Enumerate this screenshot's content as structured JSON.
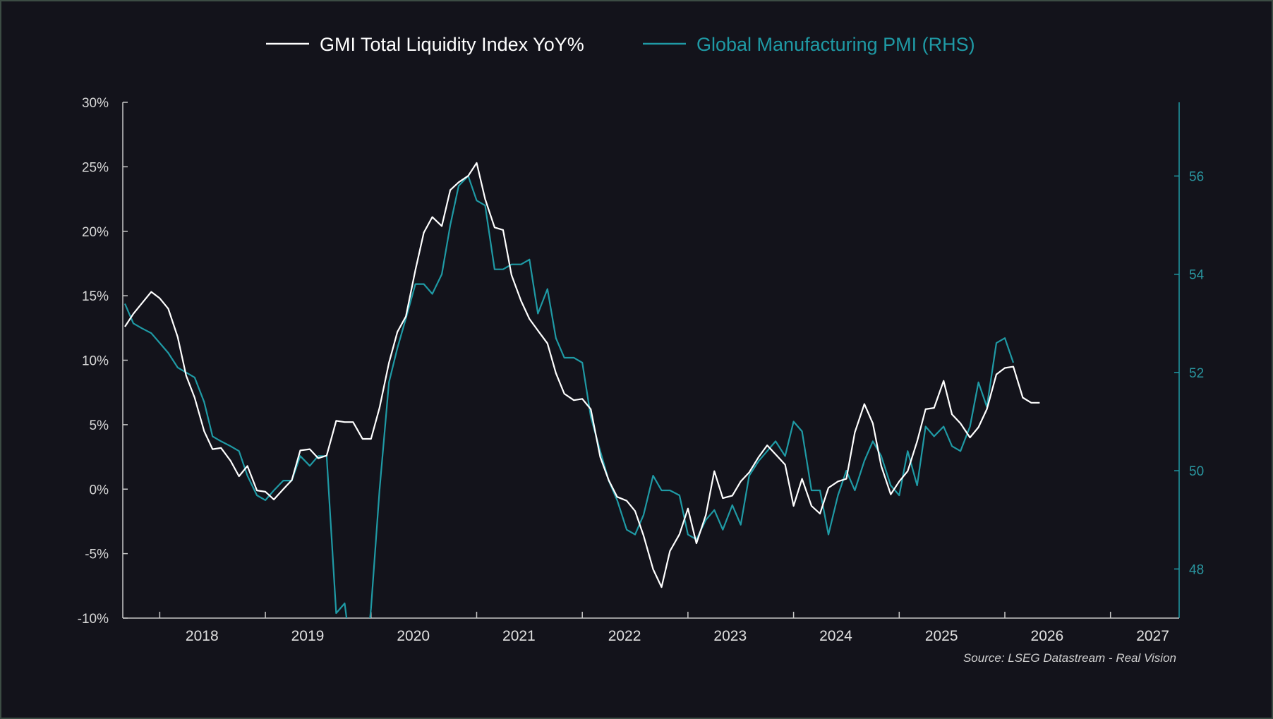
{
  "chart_data": {
    "type": "line",
    "title": "",
    "source": "Source: LSEG Datastream - Real Vision",
    "legend_position": "top-center",
    "grid": false,
    "x_axis": {
      "range": [
        2017.65,
        2027.65
      ],
      "tick_labels": [
        "2018",
        "2019",
        "2020",
        "2021",
        "2022",
        "2023",
        "2024",
        "2025",
        "2026",
        "2027"
      ]
    },
    "y_left": {
      "range": [
        -10,
        30
      ],
      "tick_labels": [
        "-10%",
        "-5%",
        "0%",
        "5%",
        "10%",
        "15%",
        "20%",
        "25%",
        "30%"
      ]
    },
    "y_right": {
      "range": [
        47,
        57.5
      ],
      "tick_labels": [
        "48",
        "50",
        "52",
        "54",
        "56"
      ]
    },
    "series": [
      {
        "name": "GMI Total Liquidity Index YoY%",
        "axis": "left",
        "color": "#ffffff",
        "points": [
          [
            2017.67,
            12.6
          ],
          [
            2017.75,
            13.6
          ],
          [
            2017.83,
            14.4
          ],
          [
            2017.92,
            15.3
          ],
          [
            2018.0,
            14.8
          ],
          [
            2018.08,
            14.0
          ],
          [
            2018.17,
            11.8
          ],
          [
            2018.25,
            8.8
          ],
          [
            2018.33,
            7.1
          ],
          [
            2018.42,
            4.5
          ],
          [
            2018.5,
            3.1
          ],
          [
            2018.58,
            3.2
          ],
          [
            2018.67,
            2.2
          ],
          [
            2018.75,
            1.0
          ],
          [
            2018.83,
            1.8
          ],
          [
            2018.92,
            -0.1
          ],
          [
            2019.0,
            -0.2
          ],
          [
            2019.08,
            -0.8
          ],
          [
            2019.17,
            0.0
          ],
          [
            2019.25,
            0.7
          ],
          [
            2019.33,
            3.0
          ],
          [
            2019.42,
            3.1
          ],
          [
            2019.5,
            2.4
          ],
          [
            2019.58,
            2.6
          ],
          [
            2019.67,
            5.3
          ],
          [
            2019.75,
            5.2
          ],
          [
            2019.83,
            5.2
          ],
          [
            2019.92,
            3.9
          ],
          [
            2020.0,
            3.9
          ],
          [
            2020.08,
            6.3
          ],
          [
            2020.17,
            9.8
          ],
          [
            2020.25,
            12.2
          ],
          [
            2020.33,
            13.4
          ],
          [
            2020.42,
            17.0
          ],
          [
            2020.5,
            19.9
          ],
          [
            2020.58,
            21.1
          ],
          [
            2020.67,
            20.4
          ],
          [
            2020.75,
            23.2
          ],
          [
            2020.83,
            23.8
          ],
          [
            2020.92,
            24.3
          ],
          [
            2021.0,
            25.3
          ],
          [
            2021.08,
            22.5
          ],
          [
            2021.17,
            20.3
          ],
          [
            2021.25,
            20.1
          ],
          [
            2021.33,
            16.6
          ],
          [
            2021.42,
            14.6
          ],
          [
            2021.5,
            13.2
          ],
          [
            2021.58,
            12.3
          ],
          [
            2021.67,
            11.3
          ],
          [
            2021.75,
            9.0
          ],
          [
            2021.83,
            7.4
          ],
          [
            2021.92,
            6.9
          ],
          [
            2022.0,
            7.0
          ],
          [
            2022.08,
            6.2
          ],
          [
            2022.17,
            2.5
          ],
          [
            2022.25,
            0.7
          ],
          [
            2022.33,
            -0.6
          ],
          [
            2022.42,
            -0.9
          ],
          [
            2022.5,
            -1.7
          ],
          [
            2022.58,
            -3.6
          ],
          [
            2022.67,
            -6.2
          ],
          [
            2022.75,
            -7.6
          ],
          [
            2022.83,
            -4.8
          ],
          [
            2022.92,
            -3.5
          ],
          [
            2023.0,
            -1.5
          ],
          [
            2023.08,
            -4.2
          ],
          [
            2023.17,
            -2.0
          ],
          [
            2023.25,
            1.4
          ],
          [
            2023.33,
            -0.7
          ],
          [
            2023.42,
            -0.5
          ],
          [
            2023.5,
            0.6
          ],
          [
            2023.58,
            1.3
          ],
          [
            2023.67,
            2.5
          ],
          [
            2023.75,
            3.4
          ],
          [
            2023.83,
            2.7
          ],
          [
            2023.92,
            1.9
          ],
          [
            2024.0,
            -1.3
          ],
          [
            2024.08,
            0.8
          ],
          [
            2024.17,
            -1.3
          ],
          [
            2024.25,
            -1.9
          ],
          [
            2024.33,
            0.1
          ],
          [
            2024.42,
            0.6
          ],
          [
            2024.5,
            0.8
          ],
          [
            2024.58,
            4.4
          ],
          [
            2024.67,
            6.6
          ],
          [
            2024.75,
            5.1
          ],
          [
            2024.83,
            1.8
          ],
          [
            2024.92,
            -0.4
          ],
          [
            2025.0,
            0.6
          ],
          [
            2025.08,
            1.4
          ],
          [
            2025.17,
            3.7
          ],
          [
            2025.25,
            6.2
          ],
          [
            2025.33,
            6.3
          ],
          [
            2025.42,
            8.4
          ],
          [
            2025.5,
            5.8
          ],
          [
            2025.58,
            5.1
          ],
          [
            2025.67,
            4.0
          ],
          [
            2025.75,
            4.8
          ],
          [
            2025.83,
            6.2
          ],
          [
            2025.92,
            8.9
          ],
          [
            2026.0,
            9.4
          ],
          [
            2026.08,
            9.5
          ],
          [
            2026.17,
            7.1
          ],
          [
            2026.25,
            6.7
          ],
          [
            2026.33,
            6.7
          ]
        ]
      },
      {
        "name": "Global Manufacturing PMI (RHS)",
        "axis": "right",
        "color": "#1f9aa5",
        "points": [
          [
            2017.67,
            53.4
          ],
          [
            2017.75,
            53.0
          ],
          [
            2017.83,
            52.9
          ],
          [
            2017.92,
            52.8
          ],
          [
            2018.0,
            52.6
          ],
          [
            2018.08,
            52.4
          ],
          [
            2018.17,
            52.1
          ],
          [
            2018.25,
            52.0
          ],
          [
            2018.33,
            51.9
          ],
          [
            2018.42,
            51.4
          ],
          [
            2018.5,
            50.7
          ],
          [
            2018.58,
            50.6
          ],
          [
            2018.67,
            50.5
          ],
          [
            2018.75,
            50.4
          ],
          [
            2018.83,
            49.9
          ],
          [
            2018.92,
            49.5
          ],
          [
            2019.0,
            49.4
          ],
          [
            2019.08,
            49.6
          ],
          [
            2019.17,
            49.8
          ],
          [
            2019.25,
            49.8
          ],
          [
            2019.33,
            50.3
          ],
          [
            2019.42,
            50.1
          ],
          [
            2019.5,
            50.3
          ],
          [
            2019.58,
            50.3
          ],
          [
            2019.67,
            47.1
          ],
          [
            2019.75,
            47.3
          ],
          [
            2019.83,
            46.0
          ],
          [
            2019.92,
            45.5
          ],
          [
            2020.0,
            47.2
          ],
          [
            2020.08,
            49.6
          ],
          [
            2020.17,
            51.8
          ],
          [
            2020.25,
            52.5
          ],
          [
            2020.33,
            53.1
          ],
          [
            2020.42,
            53.8
          ],
          [
            2020.5,
            53.8
          ],
          [
            2020.58,
            53.6
          ],
          [
            2020.67,
            54.0
          ],
          [
            2020.75,
            55.0
          ],
          [
            2020.83,
            55.8
          ],
          [
            2020.92,
            56.0
          ],
          [
            2021.0,
            55.5
          ],
          [
            2021.08,
            55.4
          ],
          [
            2021.17,
            54.1
          ],
          [
            2021.25,
            54.1
          ],
          [
            2021.33,
            54.2
          ],
          [
            2021.42,
            54.2
          ],
          [
            2021.5,
            54.3
          ],
          [
            2021.58,
            53.2
          ],
          [
            2021.67,
            53.7
          ],
          [
            2021.75,
            52.7
          ],
          [
            2021.83,
            52.3
          ],
          [
            2021.92,
            52.3
          ],
          [
            2022.0,
            52.2
          ],
          [
            2022.08,
            51.1
          ],
          [
            2022.17,
            50.4
          ],
          [
            2022.25,
            49.8
          ],
          [
            2022.33,
            49.4
          ],
          [
            2022.42,
            48.8
          ],
          [
            2022.5,
            48.7
          ],
          [
            2022.58,
            49.1
          ],
          [
            2022.67,
            49.9
          ],
          [
            2022.75,
            49.6
          ],
          [
            2022.83,
            49.6
          ],
          [
            2022.92,
            49.5
          ],
          [
            2023.0,
            48.7
          ],
          [
            2023.08,
            48.6
          ],
          [
            2023.17,
            49.0
          ],
          [
            2023.25,
            49.2
          ],
          [
            2023.33,
            48.8
          ],
          [
            2023.42,
            49.3
          ],
          [
            2023.5,
            48.9
          ],
          [
            2023.58,
            49.9
          ],
          [
            2023.67,
            50.2
          ],
          [
            2023.75,
            50.4
          ],
          [
            2023.83,
            50.6
          ],
          [
            2023.92,
            50.3
          ],
          [
            2024.0,
            51.0
          ],
          [
            2024.08,
            50.8
          ],
          [
            2024.17,
            49.6
          ],
          [
            2024.25,
            49.6
          ],
          [
            2024.33,
            48.7
          ],
          [
            2024.42,
            49.5
          ],
          [
            2024.5,
            50.0
          ],
          [
            2024.58,
            49.6
          ],
          [
            2024.67,
            50.2
          ],
          [
            2024.75,
            50.6
          ],
          [
            2024.83,
            50.3
          ],
          [
            2024.92,
            49.7
          ],
          [
            2025.0,
            49.5
          ],
          [
            2025.08,
            50.4
          ],
          [
            2025.17,
            49.7
          ],
          [
            2025.25,
            50.9
          ],
          [
            2025.33,
            50.7
          ],
          [
            2025.42,
            50.9
          ],
          [
            2025.5,
            50.5
          ],
          [
            2025.58,
            50.4
          ],
          [
            2025.67,
            50.9
          ],
          [
            2025.75,
            51.8
          ],
          [
            2025.83,
            51.3
          ],
          [
            2025.92,
            52.6
          ],
          [
            2026.0,
            52.7
          ],
          [
            2026.08,
            52.2
          ]
        ]
      }
    ]
  }
}
